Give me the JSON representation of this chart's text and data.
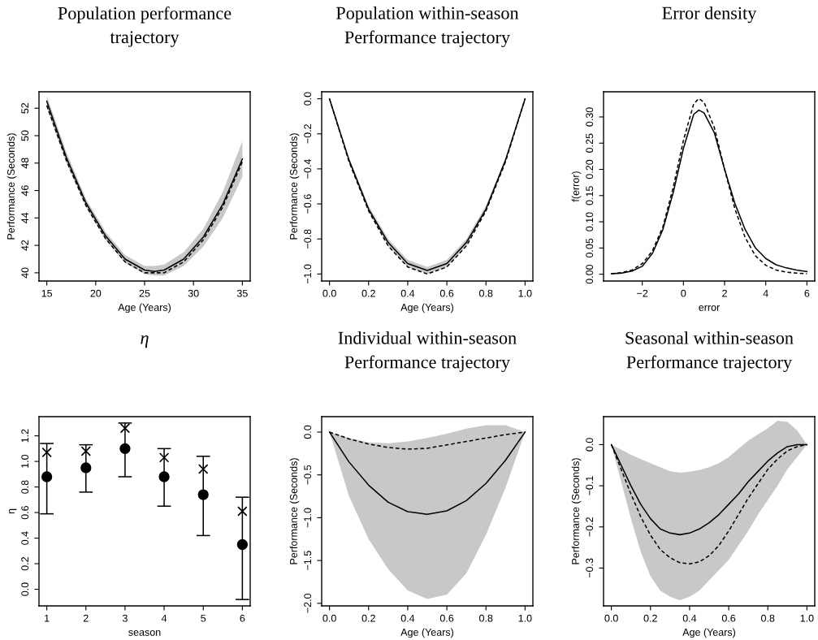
{
  "chart_data": [
    {
      "type": "line",
      "title": "Population performance\ntrajectory",
      "xlabel": "Age (Years)",
      "ylabel": "Performance (Seconds)",
      "xlim": [
        14.2,
        35.8
      ],
      "ylim": [
        39.4,
        53.2
      ],
      "xticks": [
        15,
        20,
        25,
        30,
        35
      ],
      "yticks": [
        40,
        42,
        44,
        46,
        48,
        50,
        52
      ],
      "series": [
        {
          "color": "#000000",
          "line_style": "solid",
          "x": [
            15,
            17,
            19,
            21,
            23,
            25,
            26,
            27,
            29,
            31,
            33,
            35
          ],
          "values": [
            52.5,
            48.4,
            45.1,
            42.7,
            41.0,
            40.2,
            40.1,
            40.2,
            41.0,
            42.6,
            45.0,
            48.3
          ],
          "lower": [
            52.0,
            48.0,
            44.8,
            42.4,
            40.7,
            39.9,
            39.8,
            39.8,
            40.5,
            41.9,
            44.0,
            47.0
          ],
          "upper": [
            52.9,
            48.8,
            45.4,
            43.0,
            41.3,
            40.5,
            40.5,
            40.6,
            41.5,
            43.2,
            45.9,
            49.6
          ]
        },
        {
          "color": "#000000",
          "line_style": "dashed",
          "x": [
            15,
            17,
            19,
            21,
            23,
            25,
            26,
            27,
            29,
            31,
            33,
            35
          ],
          "values": [
            52.2,
            48.2,
            44.9,
            42.5,
            40.8,
            40.0,
            40.0,
            40.0,
            40.8,
            42.4,
            44.8,
            48.1
          ]
        }
      ]
    },
    {
      "type": "line",
      "title": "Population within-season\nPerformance trajectory",
      "xlabel": "Age (Years)",
      "ylabel": "Performance (Seconds)",
      "xlim": [
        -0.04,
        1.04
      ],
      "ylim": [
        -1.04,
        0.04
      ],
      "xticks": [
        {
          "value": 0,
          "label": "0.0"
        },
        0.2,
        0.4,
        0.6,
        0.8,
        {
          "value": 1,
          "label": "1.0"
        }
      ],
      "yticks": [
        {
          "value": -1,
          "label": "−1.0"
        },
        {
          "value": -0.8,
          "label": "−0.8"
        },
        {
          "value": -0.6,
          "label": "−0.6"
        },
        {
          "value": -0.4,
          "label": "−0.4"
        },
        {
          "value": -0.2,
          "label": "−0.2"
        },
        {
          "value": 0,
          "label": "0.0"
        }
      ],
      "series": [
        {
          "color": "#000000",
          "line_style": "solid",
          "x": [
            0,
            0.1,
            0.2,
            0.3,
            0.4,
            0.5,
            0.6,
            0.7,
            0.8,
            0.9,
            1.0
          ],
          "values": [
            0,
            -0.35,
            -0.63,
            -0.82,
            -0.94,
            -0.98,
            -0.94,
            -0.82,
            -0.63,
            -0.35,
            0
          ],
          "lower": [
            0,
            -0.36,
            -0.64,
            -0.84,
            -0.96,
            -1.0,
            -0.96,
            -0.84,
            -0.64,
            -0.36,
            0
          ],
          "upper": [
            0,
            -0.34,
            -0.61,
            -0.8,
            -0.92,
            -0.96,
            -0.92,
            -0.8,
            -0.61,
            -0.34,
            0
          ]
        },
        {
          "color": "#000000",
          "line_style": "dashed",
          "x": [
            0,
            0.1,
            0.2,
            0.3,
            0.4,
            0.5,
            0.6,
            0.7,
            0.8,
            0.9,
            1.0
          ],
          "values": [
            0,
            -0.36,
            -0.64,
            -0.84,
            -0.96,
            -1.0,
            -0.96,
            -0.84,
            -0.64,
            -0.36,
            0
          ]
        }
      ]
    },
    {
      "type": "line",
      "title": "Error density",
      "xlabel": "error",
      "ylabel": "f(error)",
      "xlim": [
        -3.88,
        6.38
      ],
      "ylim": [
        -0.013,
        0.348
      ],
      "xticks": [
        {
          "value": -2,
          "label": "−2"
        },
        0,
        2,
        4,
        6
      ],
      "yticks": [
        {
          "value": 0,
          "label": "0.00"
        },
        0.05,
        {
          "value": 0.1,
          "label": "0.10"
        },
        0.15,
        {
          "value": 0.2,
          "label": "0.20"
        },
        0.25,
        {
          "value": 0.3,
          "label": "0.30"
        }
      ],
      "series": [
        {
          "color": "#000000",
          "line_style": "solid",
          "x": [
            -3.5,
            -3,
            -2.5,
            -2,
            -1.5,
            -1,
            -0.5,
            0,
            0.5,
            0.75,
            1,
            1.5,
            2,
            2.5,
            3,
            3.5,
            4,
            4.5,
            5,
            5.5,
            6
          ],
          "values": [
            0.001,
            0.002,
            0.006,
            0.015,
            0.04,
            0.085,
            0.155,
            0.24,
            0.305,
            0.313,
            0.308,
            0.27,
            0.2,
            0.135,
            0.085,
            0.05,
            0.03,
            0.018,
            0.012,
            0.008,
            0.005
          ]
        },
        {
          "color": "#000000",
          "line_style": "dashed",
          "x": [
            -3.5,
            -3,
            -2.5,
            -2,
            -1.5,
            -1,
            -0.5,
            0,
            0.5,
            0.75,
            1,
            1.5,
            2,
            2.5,
            3,
            3.5,
            4,
            4.5,
            5,
            5.5,
            6
          ],
          "values": [
            0.001,
            0.003,
            0.008,
            0.02,
            0.045,
            0.09,
            0.165,
            0.255,
            0.325,
            0.335,
            0.328,
            0.28,
            0.2,
            0.125,
            0.07,
            0.035,
            0.017,
            0.008,
            0.004,
            0.002,
            0.001
          ]
        }
      ]
    },
    {
      "type": "scatter",
      "title": "η",
      "xlabel": "season",
      "ylabel": "η",
      "xlim": [
        0.8,
        6.2
      ],
      "ylim": [
        -0.13,
        1.35
      ],
      "xticks": [
        1,
        2,
        3,
        4,
        5,
        6
      ],
      "yticks": [
        {
          "value": 0,
          "label": "0.0"
        },
        0.2,
        0.4,
        0.6,
        0.8,
        {
          "value": 1,
          "label": "1.0"
        },
        1.2
      ],
      "series": [
        {
          "color": "#000000",
          "marker": "circle",
          "x": [
            1,
            2,
            3,
            4,
            5,
            6
          ],
          "values": [
            0.88,
            0.95,
            1.1,
            0.88,
            0.74,
            0.35
          ],
          "errors": [
            [
              0.59,
              1.14
            ],
            [
              0.76,
              1.13
            ],
            [
              0.88,
              1.3
            ],
            [
              0.65,
              1.1
            ],
            [
              0.42,
              1.04
            ],
            [
              -0.08,
              0.72
            ]
          ]
        },
        {
          "color": "#000000",
          "marker": "cross",
          "x": [
            1,
            2,
            3,
            4,
            5,
            6
          ],
          "values": [
            1.07,
            1.08,
            1.26,
            1.03,
            0.94,
            0.61
          ]
        }
      ]
    },
    {
      "type": "line",
      "title": "Individual within-season\nPerformance trajectory",
      "xlabel": "Age (Years)",
      "ylabel": "Performance (Seconds)",
      "xlim": [
        -0.04,
        1.04
      ],
      "ylim": [
        -2.03,
        0.18
      ],
      "xticks": [
        {
          "value": 0,
          "label": "0.0"
        },
        0.2,
        0.4,
        0.6,
        0.8,
        {
          "value": 1,
          "label": "1.0"
        }
      ],
      "yticks": [
        {
          "value": -2,
          "label": "−2.0"
        },
        {
          "value": -1.5,
          "label": "−1.5"
        },
        {
          "value": -1,
          "label": "−1.0"
        },
        {
          "value": -0.5,
          "label": "−0.5"
        },
        {
          "value": 0,
          "label": "0.0"
        }
      ],
      "series": [
        {
          "color": "#000000",
          "line_style": "solid",
          "x": [
            0,
            0.1,
            0.2,
            0.3,
            0.4,
            0.5,
            0.6,
            0.7,
            0.8,
            0.9,
            1.0
          ],
          "values": [
            0,
            -0.35,
            -0.62,
            -0.82,
            -0.93,
            -0.96,
            -0.92,
            -0.8,
            -0.6,
            -0.33,
            0
          ],
          "lower": [
            0,
            -0.75,
            -1.25,
            -1.6,
            -1.85,
            -1.95,
            -1.9,
            -1.65,
            -1.2,
            -0.65,
            0
          ],
          "upper": [
            0,
            -0.07,
            -0.12,
            -0.13,
            -0.11,
            -0.07,
            -0.02,
            0.04,
            0.08,
            0.08,
            0
          ]
        },
        {
          "color": "#000000",
          "line_style": "dashed",
          "x": [
            0,
            0.1,
            0.2,
            0.3,
            0.4,
            0.5,
            0.6,
            0.7,
            0.8,
            0.9,
            1.0
          ],
          "values": [
            0,
            -0.08,
            -0.14,
            -0.18,
            -0.2,
            -0.19,
            -0.15,
            -0.11,
            -0.07,
            -0.03,
            0
          ]
        }
      ]
    },
    {
      "type": "line",
      "title": "Seasonal within-season\nPerformance trajectory",
      "xlabel": "Age (Years)",
      "ylabel": "Performance (Seconds)",
      "xlim": [
        -0.04,
        1.04
      ],
      "ylim": [
        -0.392,
        0.068
      ],
      "xticks": [
        {
          "value": 0,
          "label": "0.0"
        },
        0.2,
        0.4,
        0.6,
        0.8,
        {
          "value": 1,
          "label": "1.0"
        }
      ],
      "yticks": [
        {
          "value": -0.3,
          "label": "−0.3"
        },
        {
          "value": -0.2,
          "label": "−0.2"
        },
        {
          "value": -0.1,
          "label": "−0.1"
        },
        {
          "value": 0,
          "label": "0.0"
        }
      ],
      "series": [
        {
          "color": "#000000",
          "line_style": "solid",
          "x": [
            0,
            0.05,
            0.1,
            0.15,
            0.2,
            0.25,
            0.3,
            0.35,
            0.4,
            0.45,
            0.5,
            0.55,
            0.6,
            0.65,
            0.7,
            0.75,
            0.8,
            0.85,
            0.9,
            0.95,
            1.0
          ],
          "values": [
            0,
            -0.05,
            -0.1,
            -0.145,
            -0.18,
            -0.205,
            -0.215,
            -0.219,
            -0.215,
            -0.205,
            -0.19,
            -0.17,
            -0.145,
            -0.12,
            -0.09,
            -0.065,
            -0.04,
            -0.02,
            -0.005,
            0.0,
            0
          ],
          "lower": [
            0,
            -0.09,
            -0.18,
            -0.26,
            -0.32,
            -0.355,
            -0.37,
            -0.378,
            -0.37,
            -0.355,
            -0.33,
            -0.305,
            -0.28,
            -0.245,
            -0.21,
            -0.17,
            -0.135,
            -0.1,
            -0.06,
            -0.03,
            0
          ],
          "upper": [
            0,
            -0.012,
            -0.025,
            -0.035,
            -0.045,
            -0.055,
            -0.065,
            -0.068,
            -0.066,
            -0.062,
            -0.055,
            -0.045,
            -0.03,
            -0.01,
            0.01,
            0.025,
            0.04,
            0.058,
            0.055,
            0.035,
            0
          ]
        },
        {
          "color": "#000000",
          "line_style": "dashed",
          "x": [
            0,
            0.05,
            0.1,
            0.15,
            0.2,
            0.25,
            0.3,
            0.35,
            0.4,
            0.45,
            0.5,
            0.55,
            0.6,
            0.65,
            0.7,
            0.75,
            0.8,
            0.85,
            0.9,
            0.95,
            1.0
          ],
          "values": [
            0,
            -0.06,
            -0.12,
            -0.175,
            -0.22,
            -0.255,
            -0.275,
            -0.287,
            -0.29,
            -0.285,
            -0.27,
            -0.245,
            -0.21,
            -0.17,
            -0.13,
            -0.095,
            -0.06,
            -0.035,
            -0.015,
            -0.005,
            0
          ]
        }
      ]
    }
  ]
}
